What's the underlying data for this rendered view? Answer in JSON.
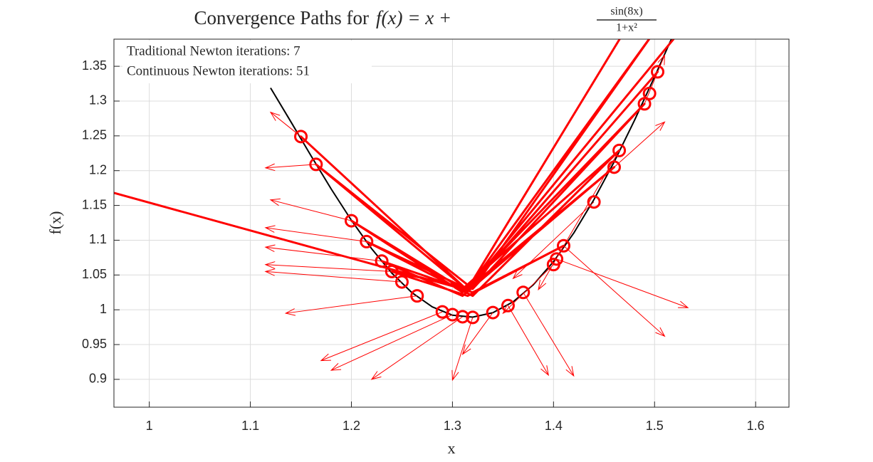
{
  "chart_data": {
    "type": "line",
    "title_prefix": "Convergence Paths for",
    "title_math": "f(x) = x +",
    "title_num": "sin(8x)",
    "title_den": "1+x²",
    "xlabel": "x",
    "ylabel": "f(x)",
    "xlim": [
      0.965,
      1.633
    ],
    "ylim": [
      0.86,
      1.389
    ],
    "xticks": [
      1,
      1.1,
      1.2,
      1.3,
      1.4,
      1.5,
      1.6
    ],
    "yticks": [
      0.9,
      0.95,
      1,
      1.05,
      1.1,
      1.15,
      1.2,
      1.25,
      1.3,
      1.35
    ],
    "grid": true,
    "annotations": [
      "Traditional Newton iterations: 7",
      "Continuous Newton iterations: 51"
    ],
    "curve": {
      "color": "#000000",
      "x": [
        1.12,
        1.14,
        1.16,
        1.18,
        1.2,
        1.22,
        1.24,
        1.26,
        1.28,
        1.3,
        1.32,
        1.34,
        1.36,
        1.38,
        1.4,
        1.42,
        1.44,
        1.46,
        1.48,
        1.5,
        1.52
      ],
      "y": [
        1.3189,
        1.2705,
        1.2215,
        1.1736,
        1.1286,
        1.0878,
        1.0527,
        1.0245,
        1.0042,
        0.9922,
        0.9894,
        0.9958,
        1.0114,
        1.036,
        1.0692,
        1.1102,
        1.1584,
        1.2126,
        1.2719,
        1.3349,
        1.4001
      ]
    },
    "path": {
      "color": "#ff0000",
      "x": [
        0.965,
        1.315,
        1.15,
        1.315,
        1.503,
        1.315,
        1.165,
        1.32,
        1.49,
        1.31,
        1.2,
        1.31,
        1.465,
        1.32,
        1.215,
        1.315,
        1.46,
        1.31,
        1.23,
        1.32,
        1.41,
        1.315,
        1.24,
        1.32,
        1.5,
        1.315,
        1.47,
        1.315,
        1.525
      ],
      "y": [
        1.168,
        1.028,
        1.249,
        1.028,
        1.342,
        1.028,
        1.209,
        1.03,
        1.296,
        1.025,
        1.128,
        1.03,
        1.229,
        1.02,
        1.098,
        1.03,
        1.205,
        1.02,
        1.07,
        1.025,
        1.092,
        1.02,
        1.055,
        1.03,
        1.4,
        1.03,
        1.4,
        1.03,
        1.4
      ]
    },
    "markers": {
      "color": "#ff0000",
      "x": [
        1.15,
        1.165,
        1.2,
        1.215,
        1.23,
        1.24,
        1.25,
        1.265,
        1.29,
        1.3,
        1.31,
        1.32,
        1.34,
        1.355,
        1.37,
        1.4,
        1.403,
        1.41,
        1.44,
        1.46,
        1.465,
        1.49,
        1.495,
        1.503
      ],
      "y": [
        1.249,
        1.209,
        1.128,
        1.098,
        1.07,
        1.055,
        1.04,
        1.02,
        0.997,
        0.993,
        0.99,
        0.989,
        0.996,
        1.006,
        1.025,
        1.065,
        1.073,
        1.092,
        1.155,
        1.205,
        1.229,
        1.296,
        1.311,
        1.342
      ]
    },
    "arrows": {
      "color": "#ff0000",
      "x": [
        1.15,
        1.165,
        1.2,
        1.215,
        1.23,
        1.24,
        1.25,
        1.265,
        1.29,
        1.3,
        1.31,
        1.32,
        1.34,
        1.355,
        1.37,
        1.4,
        1.403,
        1.41,
        1.44,
        1.46,
        1.465,
        1.49
      ],
      "y": [
        1.249,
        1.209,
        1.128,
        1.098,
        1.07,
        1.055,
        1.04,
        1.02,
        0.997,
        0.993,
        0.99,
        0.989,
        0.996,
        1.006,
        1.025,
        1.065,
        1.073,
        1.092,
        1.155,
        1.205,
        1.229,
        1.296
      ],
      "u": [
        -0.03,
        -0.05,
        -0.08,
        -0.1,
        -0.115,
        -0.125,
        -0.135,
        -0.13,
        -0.12,
        -0.12,
        -0.09,
        -0.02,
        -0.03,
        0.04,
        0.05,
        -0.05,
        0.13,
        0.1,
        -0.08,
        0.05,
        -0.08,
        0.02
      ],
      "v": [
        0.035,
        -0.005,
        0.03,
        0.02,
        0.02,
        0.01,
        0.015,
        -0.025,
        -0.07,
        -0.08,
        -0.09,
        -0.09,
        -0.06,
        -0.1,
        -0.12,
        -0.07,
        -0.07,
        -0.13,
        -0.11,
        0.065,
        -0.2,
        0.07
      ]
    }
  }
}
